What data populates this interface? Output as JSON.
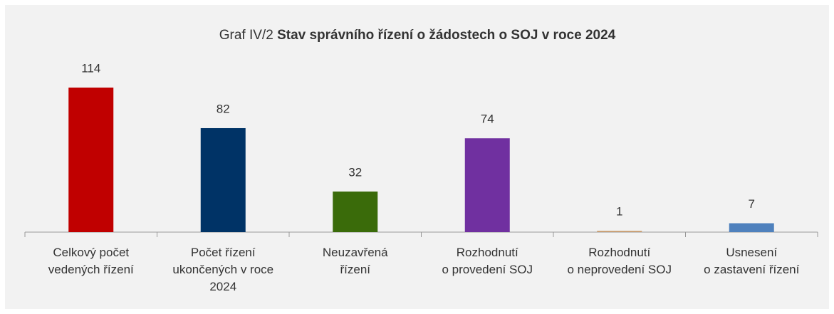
{
  "chart_data": {
    "type": "bar",
    "title_prefix": "Graf IV/2",
    "title": "Stav správního řízení o žádostech o SOJ v roce 2024",
    "categories": [
      [
        "Celkový počet",
        "vedených řízení"
      ],
      [
        "Počet řízení",
        "ukončených v roce",
        "2024"
      ],
      [
        "Neuzavřená",
        "řízení"
      ],
      [
        "Rozhodnutí",
        "o provedení SOJ"
      ],
      [
        "Rozhodnutí",
        "o neprovedení SOJ"
      ],
      [
        "Usnesení",
        "o zastavení řízení"
      ]
    ],
    "values": [
      114,
      82,
      32,
      74,
      1,
      7
    ],
    "colors": [
      "#c00000",
      "#003366",
      "#3a6b0a",
      "#7030a0",
      "#c89b6d",
      "#4f81bd"
    ]
  }
}
